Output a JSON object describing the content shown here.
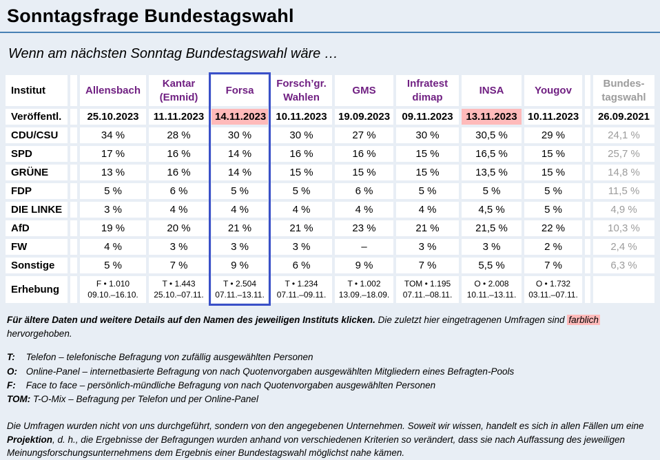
{
  "page": {
    "title": "Sonntagsfrage Bundestagswahl",
    "subtitle": "Wenn am nächsten Sonntag Bundestagswahl wäre …"
  },
  "colors": {
    "page_background": "#E8EEF5",
    "top_rule_blue": "#4781B4",
    "institute_purple": "#702082",
    "election_gray": "#9C9C9C",
    "recent_highlight_pink": "#FFBABA",
    "selected_column_blue": "#3A50C8"
  },
  "table": {
    "corner_label": "Institut",
    "institutes": [
      "Allensbach",
      "Kantar\n(Emnid)",
      "Forsa",
      "Forsch’gr.\nWahlen",
      "GMS",
      "Infratest\ndimap",
      "INSA",
      "Yougov"
    ],
    "final_column_header": "Bundes-\ntagswahl",
    "highlighted_column_index": 2,
    "published_row": {
      "label": "Veröffentl.",
      "dates": [
        "25.10.2023",
        "11.11.2023",
        "14.11.2023",
        "10.11.2023",
        "19.09.2023",
        "09.11.2023",
        "13.11.2023",
        "10.11.2023"
      ],
      "highlighted_date_indexes": [
        2,
        6
      ],
      "final": "26.09.2021"
    },
    "party_rows": [
      {
        "label": "CDU/CSU",
        "values": [
          "34 %",
          "28 %",
          "30 %",
          "30 %",
          "27 %",
          "30 %",
          "30,5 %",
          "29 %"
        ],
        "final": "24,1 %"
      },
      {
        "label": "SPD",
        "values": [
          "17 %",
          "16 %",
          "14 %",
          "16 %",
          "16 %",
          "15 %",
          "16,5 %",
          "15 %"
        ],
        "final": "25,7 %"
      },
      {
        "label": "GRÜNE",
        "values": [
          "13 %",
          "16 %",
          "14 %",
          "15 %",
          "15 %",
          "15 %",
          "13,5 %",
          "15 %"
        ],
        "final": "14,8 %"
      },
      {
        "label": "FDP",
        "values": [
          "5 %",
          "6 %",
          "5 %",
          "5 %",
          "6 %",
          "5 %",
          "5 %",
          "5 %"
        ],
        "final": "11,5 %"
      },
      {
        "label": "DIE LINKE",
        "values": [
          "3 %",
          "4 %",
          "4 %",
          "4 %",
          "4 %",
          "4 %",
          "4,5 %",
          "5 %"
        ],
        "final": "4,9 %"
      },
      {
        "label": "AfD",
        "values": [
          "19 %",
          "20 %",
          "21 %",
          "21 %",
          "23 %",
          "21 %",
          "21,5 %",
          "22 %"
        ],
        "final": "10,3 %"
      },
      {
        "label": "FW",
        "values": [
          "4 %",
          "3 %",
          "3 %",
          "3 %",
          "–",
          "3 %",
          "3 %",
          "2 %"
        ],
        "final": "2,4 %"
      },
      {
        "label": "Sonstige",
        "values": [
          "5 %",
          "7 %",
          "9 %",
          "6 %",
          "9 %",
          "7 %",
          "5,5 %",
          "7 %"
        ],
        "final": "6,3 %"
      }
    ],
    "survey_row": {
      "label": "Erhebung",
      "cells": [
        "F • 1.010\n09.10.–16.10.",
        "T • 1.443\n25.10.–07.11.",
        "T • 2.504\n07.11.–13.11.",
        "T • 1.234\n07.11.–09.11.",
        "T • 1.002\n13.09.–18.09.",
        "TOM • 1.195\n07.11.–08.11.",
        "O • 2.008\n10.11.–13.11.",
        "O • 1.732\n03.11.–07.11."
      ],
      "final": ""
    }
  },
  "notes": {
    "click_hint_bold": "Für ältere Daten und weitere Details auf den Namen des jeweiligen Instituts klicken.",
    "click_hint_middle": " Die zuletzt hier eingetragenen Umfragen sind ",
    "click_hint_marked": "farblich",
    "click_hint_end": " hervorgehoben.",
    "methods": [
      {
        "abbr": "T:",
        "text": "Telefon – telefonische Befragung von zufällig ausgewählten Personen"
      },
      {
        "abbr": "O:",
        "text": "Online-Panel – internetbasierte Befragung von nach Quotenvorgaben ausgewählten Mitgliedern eines Befragten-Pools"
      },
      {
        "abbr": "F:",
        "text": "Face to face – persönlich-mündliche Befragung von nach Quotenvorgaben ausgewählten Personen"
      },
      {
        "abbr": "TOM:",
        "text": "T-O-Mix – Befragung per Telefon und per Online-Panel"
      }
    ],
    "disclaimer_start": "Die Umfragen wurden nicht von uns durchgeführt, sondern von den angegebenen Unternehmen. Soweit wir wissen, handelt es sich in allen Fällen um eine ",
    "disclaimer_bold": "Projektion",
    "disclaimer_end": ", d. h., die Ergebnisse der Befragungen wurden anhand von verschiedenen Kriterien so verändert, dass sie nach Auffassung des jeweiligen Meinungsforschungsunternehmens dem Ergebnis einer Bundestagswahl möglichst nahe kämen."
  }
}
